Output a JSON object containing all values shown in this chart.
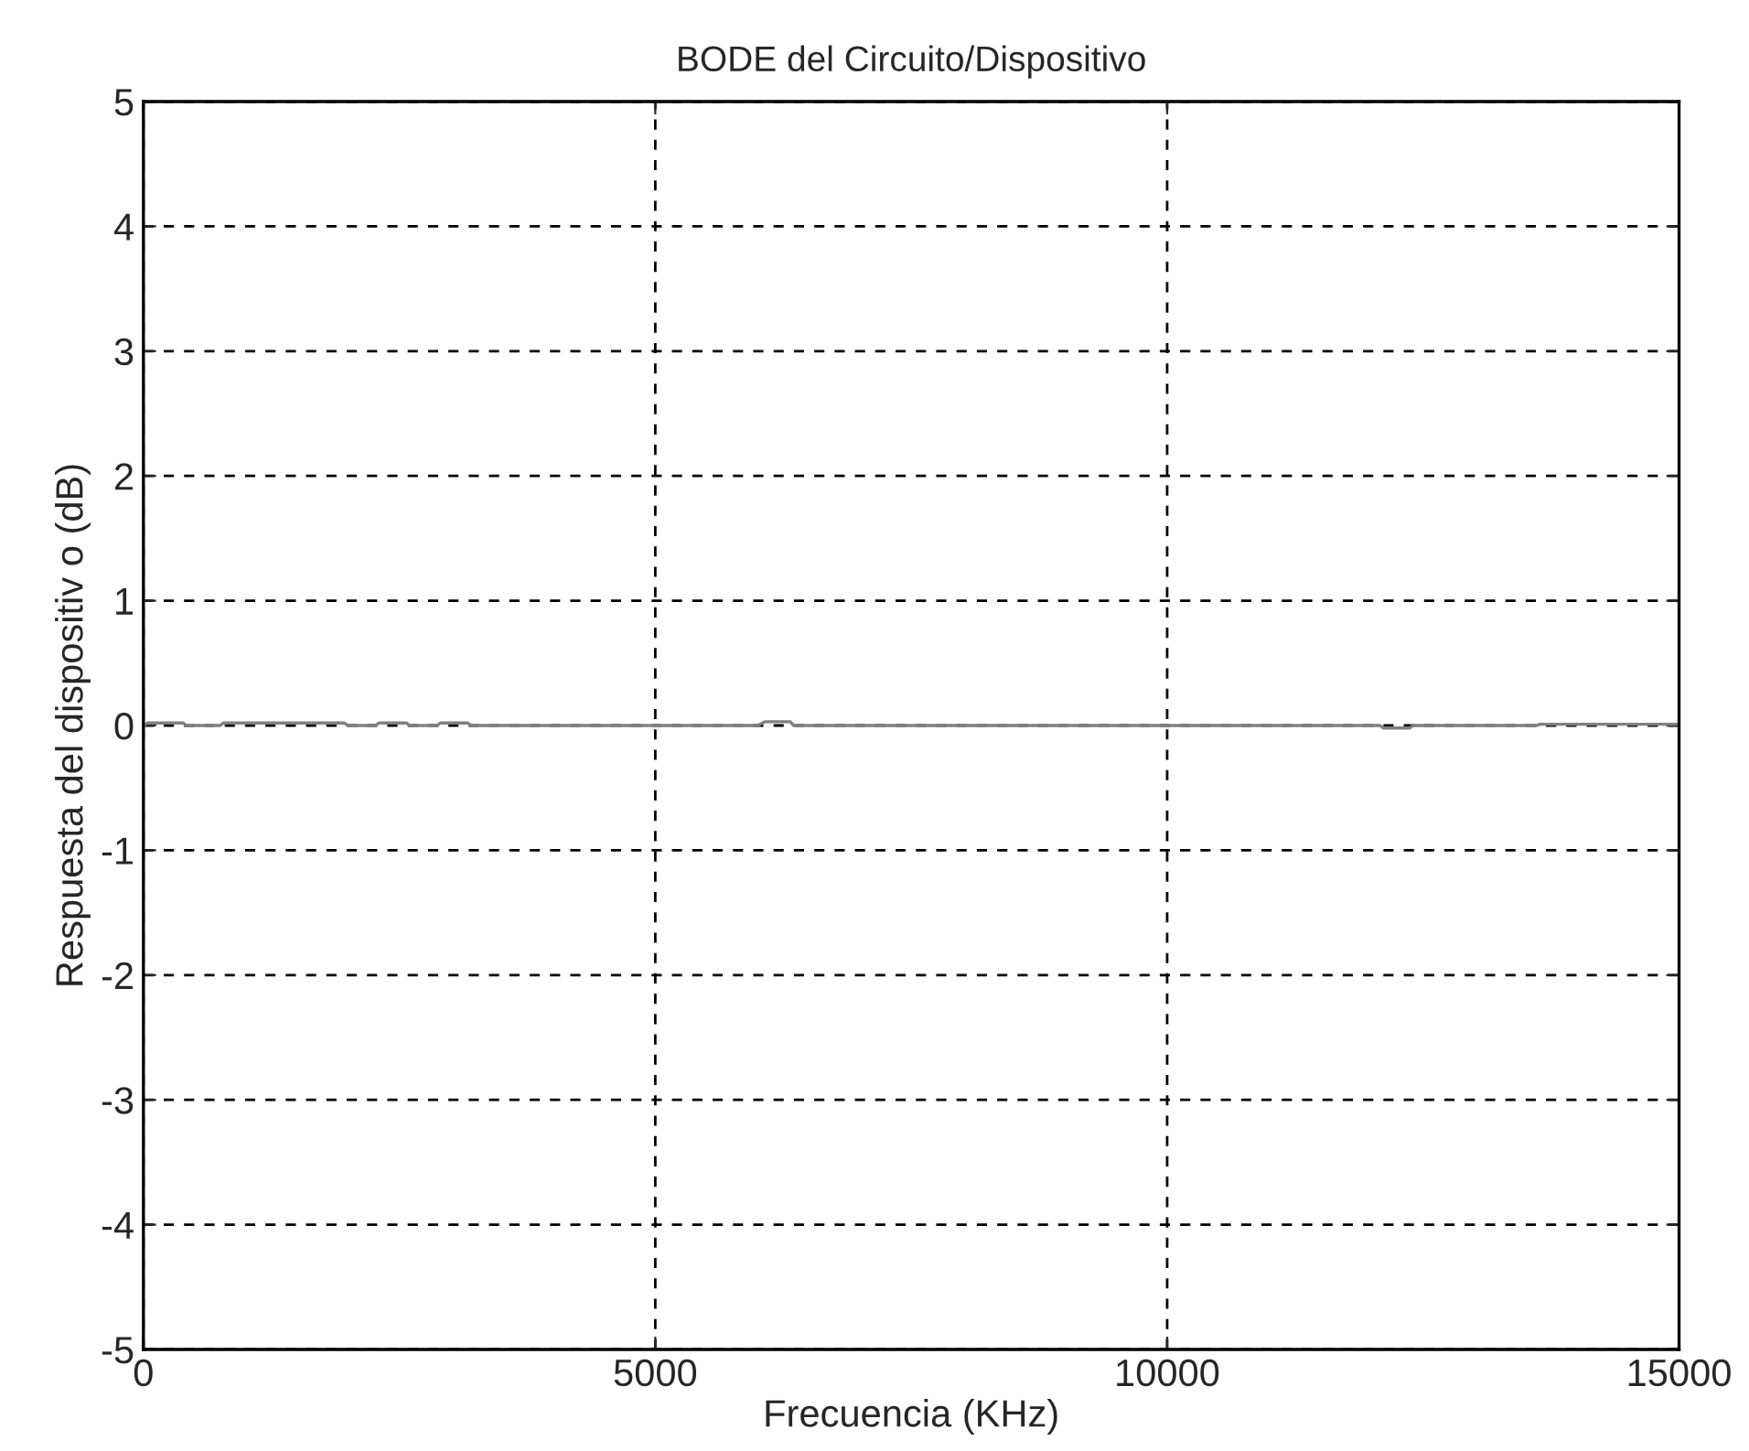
{
  "chart_data": {
    "type": "line",
    "title": "BODE del Circuito/Dispositivo",
    "xlabel": "Frecuencia (KHz)",
    "ylabel": "Respuesta del dispositiv o (dB)",
    "x": [
      0,
      40,
      390,
      420,
      750,
      780,
      1960,
      2000,
      2270,
      2300,
      2570,
      2600,
      2870,
      2900,
      3170,
      3200,
      5000,
      6000,
      6070,
      6320,
      6350,
      7500,
      10000,
      12080,
      12110,
      12370,
      12400,
      13610,
      13640,
      15000
    ],
    "series": [
      {
        "color": "#808080",
        "values": [
          0,
          0.02,
          0.02,
          0,
          0,
          0.02,
          0.02,
          0,
          0,
          0.02,
          0.02,
          0,
          0,
          0.02,
          0.02,
          0,
          0,
          0,
          0.03,
          0.03,
          0,
          0,
          0,
          0,
          -0.02,
          -0.02,
          0,
          0,
          0.01,
          0.01
        ]
      }
    ],
    "xlim": [
      0,
      15000
    ],
    "ylim": [
      -5,
      5
    ],
    "xticks": [
      0,
      5000,
      10000,
      15000
    ],
    "yticks": [
      -5,
      -4,
      -3,
      -2,
      -1,
      0,
      1,
      2,
      3,
      4,
      5
    ],
    "grid": true,
    "line_style": "solid",
    "marker": "none",
    "legend": false
  }
}
